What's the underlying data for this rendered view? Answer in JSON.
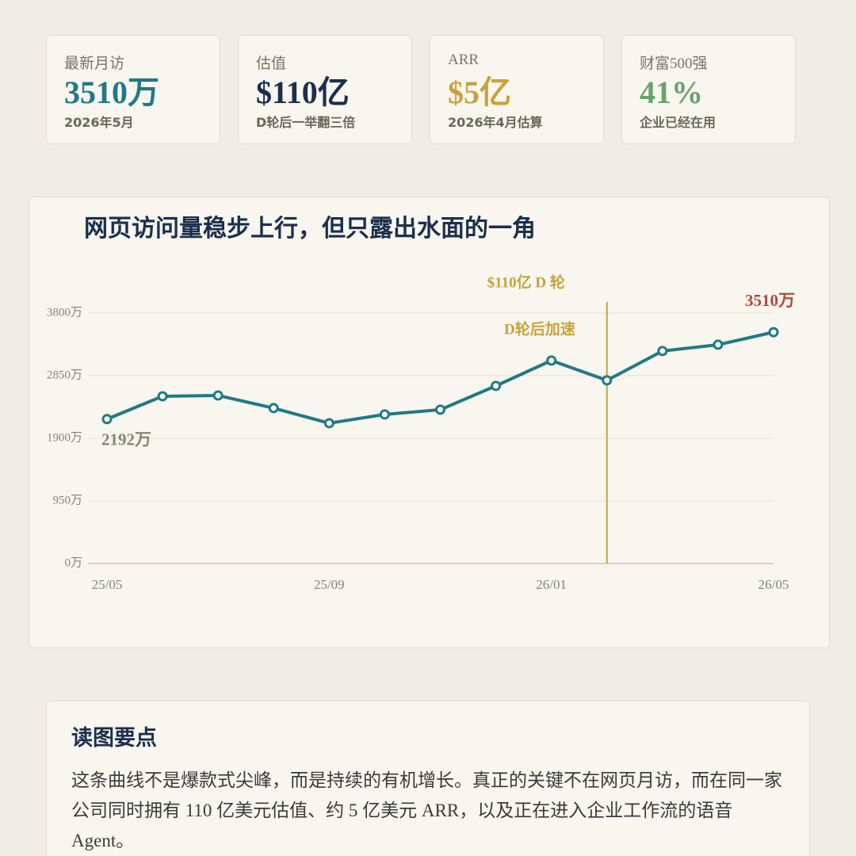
{
  "stats": [
    {
      "label": "最新月访",
      "value": "3510万",
      "sub": "2026年5月",
      "color": "#1f7a85"
    },
    {
      "label": "估值",
      "value": "$110亿",
      "sub": "D轮后一举翻三倍",
      "color": "#1b2f4e"
    },
    {
      "label": "ARR",
      "value": "$5亿",
      "sub": "2026年4月估算",
      "color": "#c9a23c"
    },
    {
      "label": "财富500强",
      "value": "41%",
      "sub": "企业已经在用",
      "color": "#6aa36f"
    }
  ],
  "chart_data": {
    "type": "line",
    "title": "网页访问量稳步上行，但只露出水面的一角",
    "categories": [
      "25/05",
      null,
      null,
      null,
      "25/09",
      null,
      null,
      null,
      "26/01",
      null,
      null,
      null,
      "26/05"
    ],
    "series": [
      {
        "color": "#1f7a85",
        "values": [
          2192,
          2538,
          2550,
          2358,
          2129,
          2262,
          2334,
          2695,
          3080,
          2779,
          3224,
          3320,
          3510
        ],
        "value_labels": [
          "2192万",
          null,
          null,
          null,
          null,
          null,
          null,
          null,
          null,
          null,
          null,
          null,
          "3510万"
        ]
      }
    ],
    "ylim": [
      0,
      3800
    ],
    "yticks": [
      {
        "value": 0,
        "label": "0万"
      },
      {
        "value": 950,
        "label": "950万"
      },
      {
        "value": 1900,
        "label": "1900万"
      },
      {
        "value": 2850,
        "label": "2850万"
      },
      {
        "value": 3800,
        "label": "3800万"
      }
    ],
    "grid": true,
    "annotation": {
      "index": 9,
      "label": "$110亿 D 轮",
      "note": "D轮后加速",
      "color": "#c9a23c"
    }
  },
  "notes": {
    "title": "读图要点",
    "body": "这条曲线不是爆款式尖峰，而是持续的有机增长。真正的关键不在网页月访，而在同一家公司同时拥有 110 亿美元估值、约 5 亿美元 ARR，以及正在进入企业工作流的语音 Agent。"
  }
}
